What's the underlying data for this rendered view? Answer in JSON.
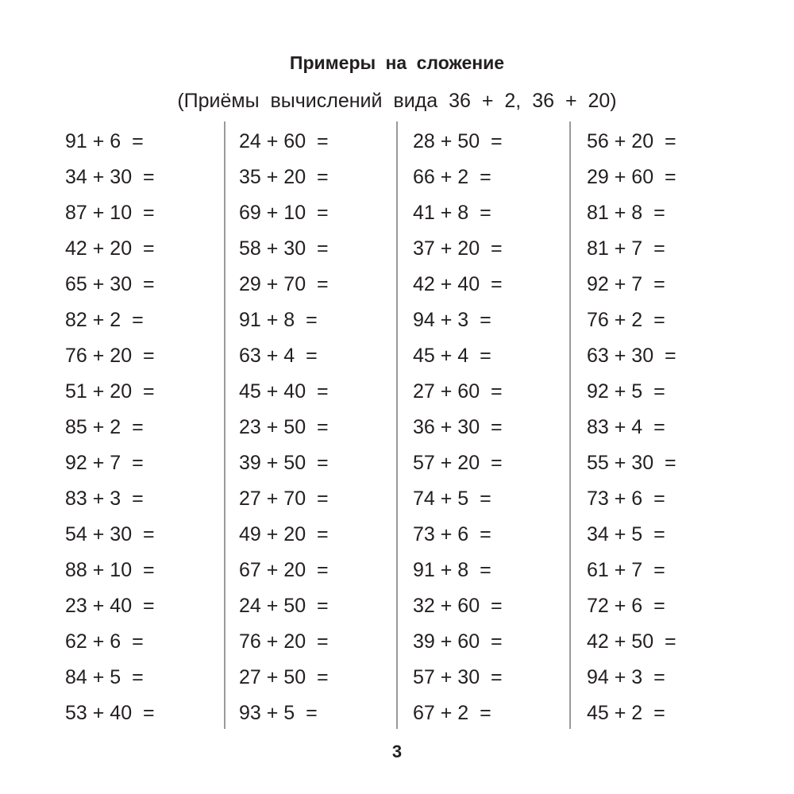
{
  "title": "Примеры на сложение",
  "subtitle": "(Приёмы вычислений вида 36 + 2, 36 + 20)",
  "columns": [
    [
      "91 + 6  =",
      "34 + 30  =",
      "87 + 10  =",
      "42 + 20  =",
      "65 + 30  =",
      "82 + 2  =",
      "76 + 20  =",
      "51 + 20  =",
      "85 + 2  =",
      "92 + 7  =",
      "83 + 3  =",
      "54 + 30  =",
      "88 + 10  =",
      "23 + 40  =",
      "62 + 6  =",
      "84 + 5  =",
      "53 + 40  ="
    ],
    [
      "24 + 60  =",
      "35 + 20  =",
      "69 + 10  =",
      "58 + 30  =",
      "29 + 70  =",
      "91 + 8  =",
      "63 + 4  =",
      "45 + 40  =",
      "23 + 50  =",
      "39 + 50  =",
      "27 + 70  =",
      "49 + 20  =",
      "67 + 20  =",
      "24 + 50  =",
      "76 + 20  =",
      "27 + 50  =",
      "93 + 5  ="
    ],
    [
      "28 + 50  =",
      "66 + 2  =",
      "41 + 8  =",
      "37 + 20  =",
      "42 + 40  =",
      "94 + 3  =",
      "45 + 4  =",
      "27 + 60  =",
      "36 + 30  =",
      "57 + 20  =",
      "74 + 5  =",
      "73 + 6  =",
      "91 + 8  =",
      "32 + 60  =",
      "39 + 60  =",
      "57 + 30  =",
      "67 + 2  ="
    ],
    [
      "56 + 20  =",
      "29 + 60  =",
      "81 + 8  =",
      "81 + 7  =",
      "92 + 7  =",
      "76 + 2  =",
      "63 + 30  =",
      "92 + 5  =",
      "83 + 4  =",
      "55 + 30  =",
      "73 + 6  =",
      "34 + 5  =",
      "61 + 7  =",
      "72 + 6  =",
      "42 + 50  =",
      "94 + 3  =",
      "45 + 2  ="
    ]
  ],
  "page_number": "3"
}
